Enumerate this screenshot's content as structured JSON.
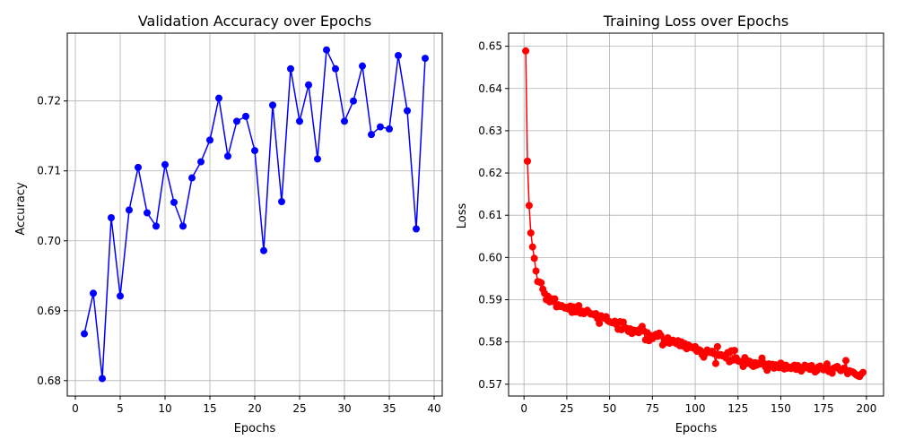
{
  "chart_data": [
    {
      "type": "line",
      "title": "Validation Accuracy over Epochs",
      "xlabel": "Epochs",
      "ylabel": "Accuracy",
      "xlim": [
        -0.9,
        40.9
      ],
      "ylim": [
        0.6778,
        0.7297
      ],
      "xticks": [
        0,
        5,
        10,
        15,
        20,
        25,
        30,
        35,
        40
      ],
      "yticks": [
        0.68,
        0.69,
        0.7,
        0.71,
        0.72
      ],
      "ytick_labels": [
        "0.68",
        "0.69",
        "0.70",
        "0.71",
        "0.72"
      ],
      "grid": true,
      "color": "#0000ff",
      "series": [
        {
          "x": [
            1,
            2,
            3,
            4,
            5,
            6,
            7,
            8,
            9,
            10,
            11,
            12,
            13,
            14,
            15,
            16,
            17,
            18,
            19,
            20,
            21,
            22,
            23,
            24,
            25,
            26,
            27,
            28,
            29,
            30,
            31,
            32,
            33,
            34,
            35,
            36,
            37,
            38,
            39
          ],
          "values": [
            0.6867,
            0.6925,
            0.6803,
            0.7033,
            0.6921,
            0.7044,
            0.7105,
            0.704,
            0.7021,
            0.7109,
            0.7055,
            0.7021,
            0.709,
            0.7113,
            0.7144,
            0.7204,
            0.7121,
            0.7171,
            0.7178,
            0.7129,
            0.6986,
            0.7194,
            0.7056,
            0.7246,
            0.7171,
            0.7223,
            0.7117,
            0.7273,
            0.7246,
            0.7171,
            0.72,
            0.725,
            0.7152,
            0.7163,
            0.716,
            0.7265,
            0.7186,
            0.7017,
            0.7261
          ]
        }
      ]
    },
    {
      "type": "line",
      "title": "Training Loss over Epochs",
      "xlabel": "Epochs",
      "ylabel": "Loss",
      "xlim": [
        -9,
        210
      ],
      "ylim": [
        0.5672,
        0.6531
      ],
      "xticks": [
        0,
        25,
        50,
        75,
        100,
        125,
        150,
        175,
        200
      ],
      "yticks": [
        0.57,
        0.58,
        0.59,
        0.6,
        0.61,
        0.62,
        0.63,
        0.64,
        0.65
      ],
      "ytick_labels": [
        "0.57",
        "0.58",
        "0.59",
        "0.60",
        "0.61",
        "0.62",
        "0.63",
        "0.64",
        "0.65"
      ],
      "grid": true,
      "color": "#ff0000",
      "series": [
        {
          "x_start": 1,
          "x_step": 1,
          "values": [
            0.6489,
            0.6228,
            0.6123,
            0.6058,
            0.6025,
            0.5998,
            0.5968,
            0.5943,
            0.5942,
            0.594,
            0.5925,
            0.5915,
            0.59,
            0.5908,
            0.5895,
            0.5902,
            0.5896,
            0.5902,
            0.5883,
            0.5888,
            0.5884,
            0.5886,
            0.5883,
            0.588,
            0.5882,
            0.5878,
            0.5885,
            0.587,
            0.5883,
            0.5871,
            0.5872,
            0.5886,
            0.5868,
            0.5873,
            0.5867,
            0.5871,
            0.5875,
            0.587,
            0.5866,
            0.5866,
            0.5864,
            0.5867,
            0.5855,
            0.5844,
            0.5862,
            0.5858,
            0.5856,
            0.586,
            0.585,
            0.5848,
            0.5846,
            0.5845,
            0.5849,
            0.5841,
            0.583,
            0.5848,
            0.5829,
            0.5847,
            0.5834,
            0.5832,
            0.5825,
            0.5831,
            0.582,
            0.5828,
            0.5824,
            0.5827,
            0.5822,
            0.5831,
            0.5837,
            0.5826,
            0.5805,
            0.5822,
            0.5803,
            0.5815,
            0.5808,
            0.5812,
            0.5818,
            0.5813,
            0.5821,
            0.5815,
            0.5793,
            0.5803,
            0.5799,
            0.581,
            0.5797,
            0.58,
            0.5804,
            0.5799,
            0.5796,
            0.5803,
            0.5791,
            0.58,
            0.579,
            0.5796,
            0.5784,
            0.5793,
            0.5787,
            0.5788,
            0.5785,
            0.5789,
            0.5778,
            0.5782,
            0.578,
            0.577,
            0.5764,
            0.5773,
            0.5781,
            0.5777,
            0.5775,
            0.5778,
            0.5772,
            0.5749,
            0.5789,
            0.5768,
            0.577,
            0.5767,
            0.5768,
            0.5762,
            0.5775,
            0.5753,
            0.5779,
            0.5757,
            0.578,
            0.5762,
            0.5755,
            0.5754,
            0.5752,
            0.5742,
            0.5763,
            0.5749,
            0.5755,
            0.5754,
            0.5745,
            0.5742,
            0.5751,
            0.5745,
            0.575,
            0.5748,
            0.5762,
            0.575,
            0.5741,
            0.5733,
            0.5748,
            0.5744,
            0.5747,
            0.5738,
            0.5746,
            0.5742,
            0.5739,
            0.575,
            0.574,
            0.5736,
            0.5745,
            0.5738,
            0.574,
            0.5737,
            0.5742,
            0.5745,
            0.5735,
            0.5744,
            0.5739,
            0.5731,
            0.5737,
            0.5745,
            0.5739,
            0.5742,
            0.5735,
            0.5744,
            0.5736,
            0.5729,
            0.5732,
            0.5741,
            0.5743,
            0.5738,
            0.5734,
            0.5738,
            0.5748,
            0.573,
            0.5735,
            0.5726,
            0.5738,
            0.574,
            0.5742,
            0.5736,
            0.5732,
            0.5734,
            0.5738,
            0.5756,
            0.5725,
            0.5732,
            0.573,
            0.5729,
            0.5726,
            0.5722,
            0.572,
            0.5718,
            0.5724,
            0.5728
          ]
        }
      ]
    }
  ]
}
